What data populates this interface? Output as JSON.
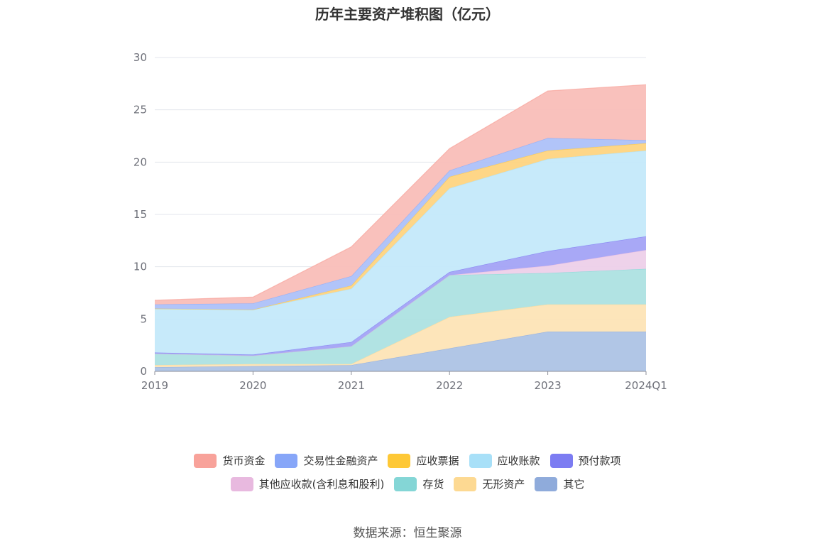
{
  "chart_data": {
    "type": "area",
    "stacked": true,
    "title": "历年主要资产堆积图（亿元）",
    "x": [
      "2019",
      "2020",
      "2021",
      "2022",
      "2023",
      "2024Q1"
    ],
    "ylim": [
      0,
      30
    ],
    "yticks": [
      "0",
      "5",
      "10",
      "15",
      "20",
      "25",
      "30"
    ],
    "grid": true,
    "legend_position": "bottom",
    "series": [
      {
        "name": "其它",
        "color": "#8fabdb",
        "fill": "#adc3e5",
        "values": [
          0.4,
          0.5,
          0.6,
          2.2,
          3.8,
          3.8
        ]
      },
      {
        "name": "无形资产",
        "color": "#fdd992",
        "fill": "#fde4b6",
        "values": [
          0.2,
          0.2,
          0.1,
          3.0,
          2.6,
          2.6
        ]
      },
      {
        "name": "存货",
        "color": "#84d6d6",
        "fill": "#ade2e2",
        "values": [
          1.1,
          0.8,
          1.7,
          4.0,
          3.0,
          3.4
        ]
      },
      {
        "name": "其他应收款(含利息和股利)",
        "color": "#e8b9df",
        "fill": "#edd0e9",
        "values": [
          0.0,
          0.0,
          0.0,
          0.0,
          0.7,
          1.8
        ]
      },
      {
        "name": "预付款项",
        "color": "#7c7cf2",
        "fill": "#a3a3f5",
        "values": [
          0.1,
          0.1,
          0.4,
          0.3,
          1.4,
          1.3
        ]
      },
      {
        "name": "应收账款",
        "color": "#a8e0f8",
        "fill": "#c4e9fa",
        "values": [
          4.2,
          4.3,
          5.1,
          8.0,
          8.8,
          8.2
        ]
      },
      {
        "name": "应收票据",
        "color": "#fec836",
        "fill": "#fed481",
        "values": [
          0.0,
          0.0,
          0.3,
          1.1,
          0.8,
          0.7
        ]
      },
      {
        "name": "交易性金融资产",
        "color": "#87a6f8",
        "fill": "#adc1f9",
        "values": [
          0.4,
          0.6,
          0.9,
          0.6,
          1.2,
          0.3
        ]
      },
      {
        "name": "货币资金",
        "color": "#f8a29a",
        "fill": "#f9beb8",
        "values": [
          0.4,
          0.6,
          2.8,
          2.1,
          4.5,
          5.3
        ]
      }
    ]
  },
  "legend": {
    "rows": [
      [
        {
          "label": "货币资金",
          "color": "#f8a29a"
        },
        {
          "label": "交易性金融资产",
          "color": "#87a6f8"
        },
        {
          "label": "应收票据",
          "color": "#fec836"
        },
        {
          "label": "应收账款",
          "color": "#a8e0f8"
        },
        {
          "label": "预付款项",
          "color": "#7c7cf2"
        }
      ],
      [
        {
          "label": "其他应收款(含利息和股利)",
          "color": "#e8b9df"
        },
        {
          "label": "存货",
          "color": "#84d6d6"
        },
        {
          "label": "无形资产",
          "color": "#fdd992"
        },
        {
          "label": "其它",
          "color": "#8fabdb"
        }
      ]
    ]
  },
  "source": "数据来源：恒生聚源"
}
